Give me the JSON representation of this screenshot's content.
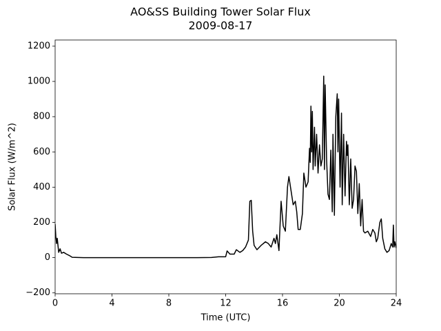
{
  "chart_data": {
    "type": "line",
    "title": "AO&SS Building Tower Solar Flux",
    "subtitle": "2009-08-17",
    "x_label": "Time (UTC)",
    "y_label": "Solar Flux (W/m^2)",
    "color": "#000000",
    "grid": false,
    "xlim": [
      0,
      24
    ],
    "xticks": [
      0,
      4,
      8,
      12,
      16,
      20,
      24
    ],
    "ylim": [
      -205,
      1235
    ],
    "yticks": [
      {
        "value": -200,
        "label": "−200"
      },
      0,
      200,
      400,
      600,
      800,
      1000,
      1200
    ],
    "x": [
      0,
      0.05,
      0.1,
      0.15,
      0.25,
      0.35,
      0.45,
      0.6,
      0.8,
      1.0,
      1.2,
      2,
      6,
      10,
      11,
      11.5,
      12,
      12.1,
      12.3,
      12.6,
      12.75,
      13.0,
      13.2,
      13.4,
      13.6,
      13.7,
      13.8,
      13.9,
      14.0,
      14.2,
      14.5,
      14.8,
      15.0,
      15.2,
      15.4,
      15.5,
      15.6,
      15.75,
      15.9,
      16.05,
      16.2,
      16.35,
      16.45,
      16.6,
      16.75,
      16.9,
      17.0,
      17.1,
      17.25,
      17.4,
      17.5,
      17.65,
      17.8,
      17.9,
      17.95,
      18.0,
      18.05,
      18.1,
      18.15,
      18.25,
      18.3,
      18.4,
      18.5,
      18.6,
      18.7,
      18.8,
      18.9,
      18.95,
      19.0,
      19.1,
      19.2,
      19.3,
      19.4,
      19.5,
      19.55,
      19.65,
      19.75,
      19.85,
      19.9,
      19.95,
      20.05,
      20.15,
      20.2,
      20.3,
      20.4,
      20.5,
      20.55,
      20.6,
      20.7,
      20.8,
      20.9,
      21.0,
      21.1,
      21.2,
      21.3,
      21.4,
      21.5,
      21.6,
      21.7,
      21.8,
      22.0,
      22.2,
      22.35,
      22.5,
      22.6,
      22.7,
      22.85,
      22.95,
      23.05,
      23.2,
      23.35,
      23.5,
      23.65,
      23.75,
      23.8,
      23.85,
      23.9,
      24.0
    ],
    "values": [
      190,
      120,
      80,
      110,
      30,
      50,
      25,
      30,
      20,
      12,
      2,
      0,
      0,
      0,
      1,
      5,
      5,
      38,
      20,
      20,
      45,
      30,
      40,
      60,
      100,
      320,
      325,
      150,
      70,
      45,
      70,
      90,
      80,
      60,
      110,
      80,
      130,
      40,
      320,
      180,
      150,
      400,
      460,
      380,
      300,
      320,
      260,
      160,
      160,
      250,
      480,
      400,
      430,
      620,
      540,
      860,
      600,
      830,
      500,
      740,
      520,
      700,
      480,
      640,
      520,
      560,
      1030,
      500,
      980,
      560,
      360,
      330,
      610,
      260,
      700,
      240,
      800,
      930,
      600,
      900,
      400,
      820,
      300,
      700,
      350,
      660,
      580,
      640,
      300,
      560,
      280,
      330,
      520,
      490,
      250,
      420,
      180,
      330,
      150,
      140,
      150,
      120,
      160,
      140,
      90,
      110,
      200,
      220,
      110,
      50,
      30,
      40,
      80,
      60,
      185,
      60,
      90,
      55
    ]
  }
}
